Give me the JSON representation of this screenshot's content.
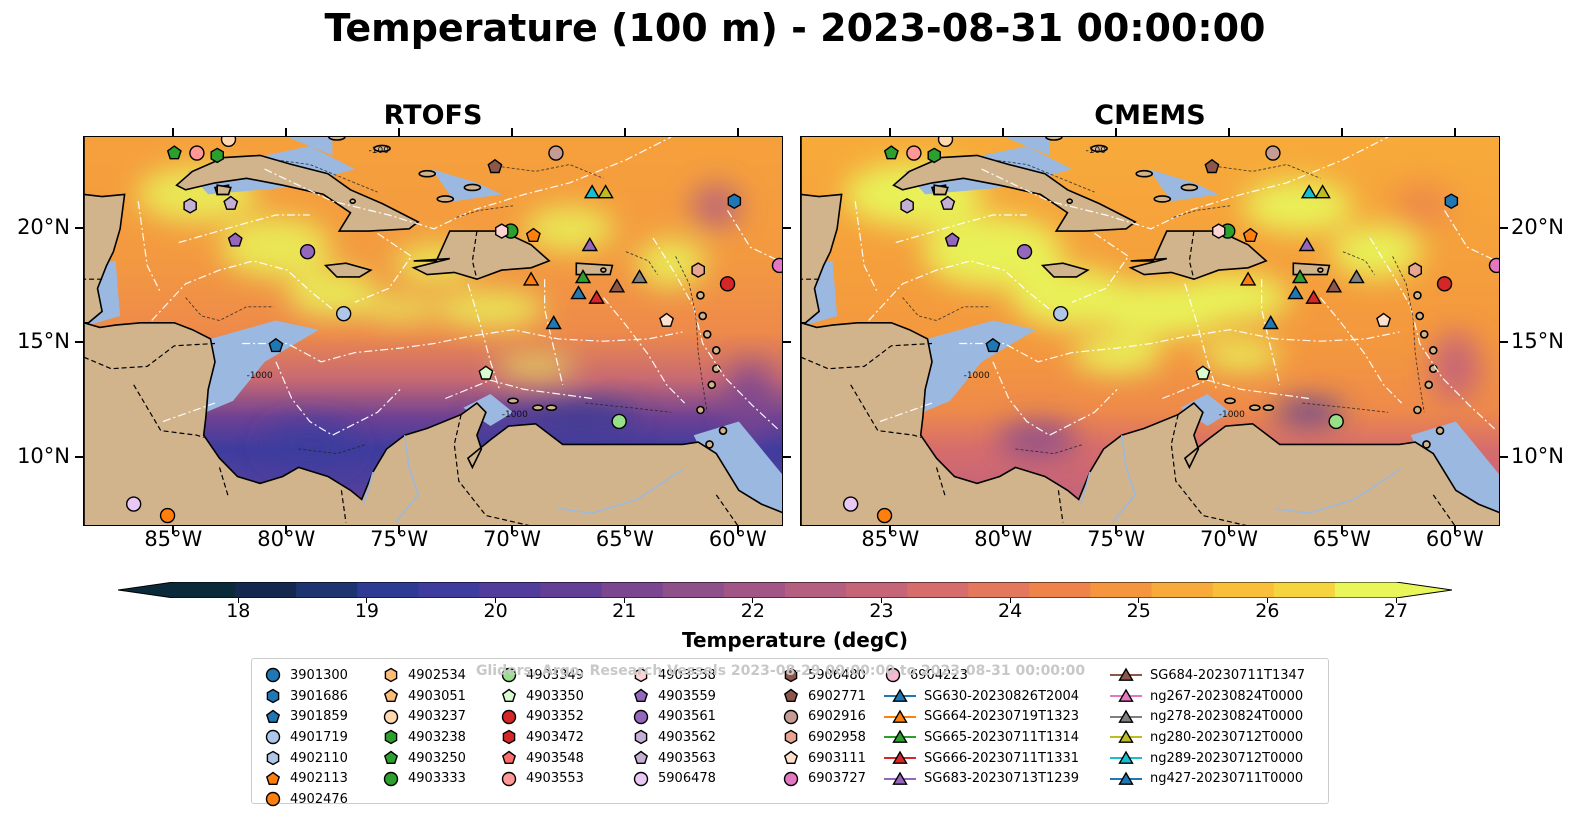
{
  "title": "Temperature (100 m) - 2023-08-31 00:00:00",
  "panels": [
    {
      "title": "RTOFS",
      "variant": "rtofs"
    },
    {
      "title": "CMEMS",
      "variant": "cmems"
    }
  ],
  "map": {
    "lon_range": [
      -89,
      -58
    ],
    "lat_range": [
      7,
      24
    ],
    "x_ticks": [
      "85°W",
      "80°W",
      "75°W",
      "70°W",
      "65°W",
      "60°W"
    ],
    "x_tick_values": [
      -85,
      -80,
      -75,
      -70,
      -65,
      -60
    ],
    "y_ticks": [
      "20°N",
      "15°N",
      "10°N"
    ],
    "y_tick_values": [
      20,
      15,
      10
    ],
    "land_color": "#d2b48c",
    "shelf_color": "#9bb8e0",
    "contour_labels": [
      "-1000",
      "-100"
    ]
  },
  "colorbar": {
    "label": "Temperature (degC)",
    "min": 17.5,
    "max": 27,
    "ticks": [
      "18",
      "19",
      "20",
      "21",
      "22",
      "23",
      "24",
      "25",
      "26",
      "27"
    ],
    "colors": [
      "#0a2a3a",
      "#15294e",
      "#1e3470",
      "#2f3a94",
      "#3e3c9e",
      "#523d9c",
      "#643f96",
      "#7a4690",
      "#8e4f8a",
      "#a25685",
      "#b45e80",
      "#c76578",
      "#d66d6c",
      "#e3785c",
      "#ee844c",
      "#f5963f",
      "#f8aa3a",
      "#f9bf3b",
      "#f6d440",
      "#e8f65a"
    ]
  },
  "watermark": "Gliders, Argo, Research Vessels 2023-08-29 00:00:00 to 2023-08-31 00:00:00",
  "legend": [
    {
      "label": "3901300",
      "marker": "circle",
      "color": "#1f77b4",
      "lon": null,
      "lat": null
    },
    {
      "label": "3901686",
      "marker": "hexagon",
      "color": "#1f77b4",
      "lon": -60.2,
      "lat": 21.2
    },
    {
      "label": "3901859",
      "marker": "pentagon",
      "color": "#1f77b4",
      "lon": -80.5,
      "lat": 14.9
    },
    {
      "label": "4901719",
      "marker": "circle",
      "color": "#aec7e8",
      "lon": -77.5,
      "lat": 16.3
    },
    {
      "label": "4902110",
      "marker": "hexagon",
      "color": "#aec7e8",
      "lon": null,
      "lat": null
    },
    {
      "label": "4902113",
      "marker": "pentagon",
      "color": "#ff7f0e",
      "lon": -69.1,
      "lat": 19.7
    },
    {
      "label": "4902476",
      "marker": "circle",
      "color": "#ff7f0e",
      "lon": -85.3,
      "lat": 7.5
    },
    {
      "label": "4902534",
      "marker": "hexagon",
      "color": "#ffbb78",
      "lon": null,
      "lat": null
    },
    {
      "label": "4903051",
      "marker": "pentagon",
      "color": "#ffbb78",
      "lon": null,
      "lat": null
    },
    {
      "label": "4903237",
      "marker": "circle",
      "color": "#ffd8b0",
      "lon": -82.6,
      "lat": 23.9
    },
    {
      "label": "4903238",
      "marker": "hexagon",
      "color": "#2ca02c",
      "lon": -83.1,
      "lat": 23.2
    },
    {
      "label": "4903250",
      "marker": "pentagon",
      "color": "#2ca02c",
      "lon": -85.0,
      "lat": 23.3
    },
    {
      "label": "4903333",
      "marker": "circle",
      "color": "#2ca02c",
      "lon": -70.1,
      "lat": 19.9
    },
    {
      "label": "4903349",
      "marker": "circle",
      "color": "#98df8a",
      "lon": -65.3,
      "lat": 11.6
    },
    {
      "label": "4903350",
      "marker": "pentagon",
      "color": "#d8fcd0",
      "lon": -71.2,
      "lat": 13.7
    },
    {
      "label": "4903352",
      "marker": "circle",
      "color": "#d62728",
      "lon": -60.5,
      "lat": 17.6
    },
    {
      "label": "4903472",
      "marker": "hexagon",
      "color": "#d62728",
      "lon": null,
      "lat": null
    },
    {
      "label": "4903548",
      "marker": "pentagon",
      "color": "#ff6b6b",
      "lon": null,
      "lat": null
    },
    {
      "label": "4903553",
      "marker": "circle",
      "color": "#ff9896",
      "lon": -84.0,
      "lat": 23.3
    },
    {
      "label": "4903558",
      "marker": "hexagon",
      "color": "#ffd3d3",
      "lon": -70.5,
      "lat": 19.9
    },
    {
      "label": "4903559",
      "marker": "pentagon",
      "color": "#9467bd",
      "lon": -82.3,
      "lat": 19.5
    },
    {
      "label": "4903561",
      "marker": "circle",
      "color": "#9467bd",
      "lon": -79.1,
      "lat": 19.0
    },
    {
      "label": "4903562",
      "marker": "hexagon",
      "color": "#c5b0d5",
      "lon": -84.3,
      "lat": 21.0
    },
    {
      "label": "4903563",
      "marker": "pentagon",
      "color": "#c5b0d5",
      "lon": -82.5,
      "lat": 21.1
    },
    {
      "label": "5906478",
      "marker": "circle",
      "color": "#e9c8f5",
      "lon": -86.8,
      "lat": 8.0
    },
    {
      "label": "5906480",
      "marker": "hexagon",
      "color": "#8c564b",
      "lon": null,
      "lat": null
    },
    {
      "label": "6902771",
      "marker": "pentagon",
      "color": "#8c564b",
      "lon": -70.8,
      "lat": 22.7
    },
    {
      "label": "6902916",
      "marker": "circle",
      "color": "#c49c94",
      "lon": -68.1,
      "lat": 23.3
    },
    {
      "label": "6902958",
      "marker": "hexagon",
      "color": "#e7a690",
      "lon": -61.8,
      "lat": 18.2
    },
    {
      "label": "6903111",
      "marker": "pentagon",
      "color": "#ffe0cc",
      "lon": -63.2,
      "lat": 16.0
    },
    {
      "label": "6903727",
      "marker": "circle",
      "color": "#e377c2",
      "lon": -58.2,
      "lat": 18.4
    },
    {
      "label": "6904223",
      "marker": "circle",
      "color": "#f7b6d2",
      "lon": null,
      "lat": null
    },
    {
      "label": "SG630-20230826T2004",
      "marker": "triangle",
      "color": "#1f77b4",
      "line": true,
      "lon": -68.2,
      "lat": 15.9
    },
    {
      "label": "SG664-20230719T1323",
      "marker": "triangle",
      "color": "#ff7f0e",
      "line": true,
      "lon": -69.2,
      "lat": 17.8
    },
    {
      "label": "SG665-20230711T1314",
      "marker": "triangle",
      "color": "#2ca02c",
      "line": true,
      "lon": -66.9,
      "lat": 17.9
    },
    {
      "label": "SG666-20230711T1331",
      "marker": "triangle",
      "color": "#d62728",
      "line": true,
      "lon": -66.3,
      "lat": 17.0
    },
    {
      "label": "SG683-20230713T1239",
      "marker": "triangle",
      "color": "#9467bd",
      "line": true,
      "lon": -66.6,
      "lat": 19.3
    },
    {
      "label": "SG684-20230711T1347",
      "marker": "triangle",
      "color": "#8c564b",
      "line": true,
      "lon": -65.4,
      "lat": 17.5
    },
    {
      "label": "ng267-20230824T0000",
      "marker": "triangle",
      "color": "#e377c2",
      "line": true,
      "lon": null,
      "lat": null
    },
    {
      "label": "ng278-20230824T0000",
      "marker": "triangle",
      "color": "#7f7f7f",
      "line": true,
      "lon": -64.4,
      "lat": 17.9
    },
    {
      "label": "ng280-20230712T0000",
      "marker": "triangle",
      "color": "#bcbd22",
      "line": true,
      "lon": -65.9,
      "lat": 21.6
    },
    {
      "label": "ng289-20230712T0000",
      "marker": "triangle",
      "color": "#17becf",
      "line": true,
      "lon": -66.5,
      "lat": 21.6
    },
    {
      "label": "ng427-20230711T0000",
      "marker": "triangle",
      "color": "#1f77b4",
      "line": true,
      "lon": -67.1,
      "lat": 17.2
    }
  ]
}
